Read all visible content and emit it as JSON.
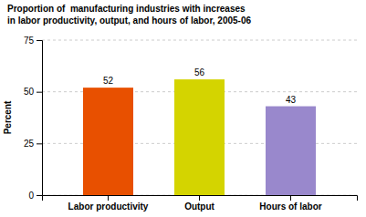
{
  "chart_data": {
    "type": "bar",
    "title": "Proportion of  manufacturing industries with increases\nin labor productivity, output, and hours of labor, 2005-06",
    "y_label": "Percent",
    "categories": [
      "Labor productivity",
      "Output",
      "Hours of labor"
    ],
    "values": [
      52,
      56,
      43
    ],
    "colors": [
      "#E85000",
      "#D4D400",
      "#9988CC"
    ],
    "ylim": [
      0,
      75
    ],
    "yticks": [
      0,
      25,
      50,
      75
    ],
    "grid": true,
    "data_labels": true
  }
}
